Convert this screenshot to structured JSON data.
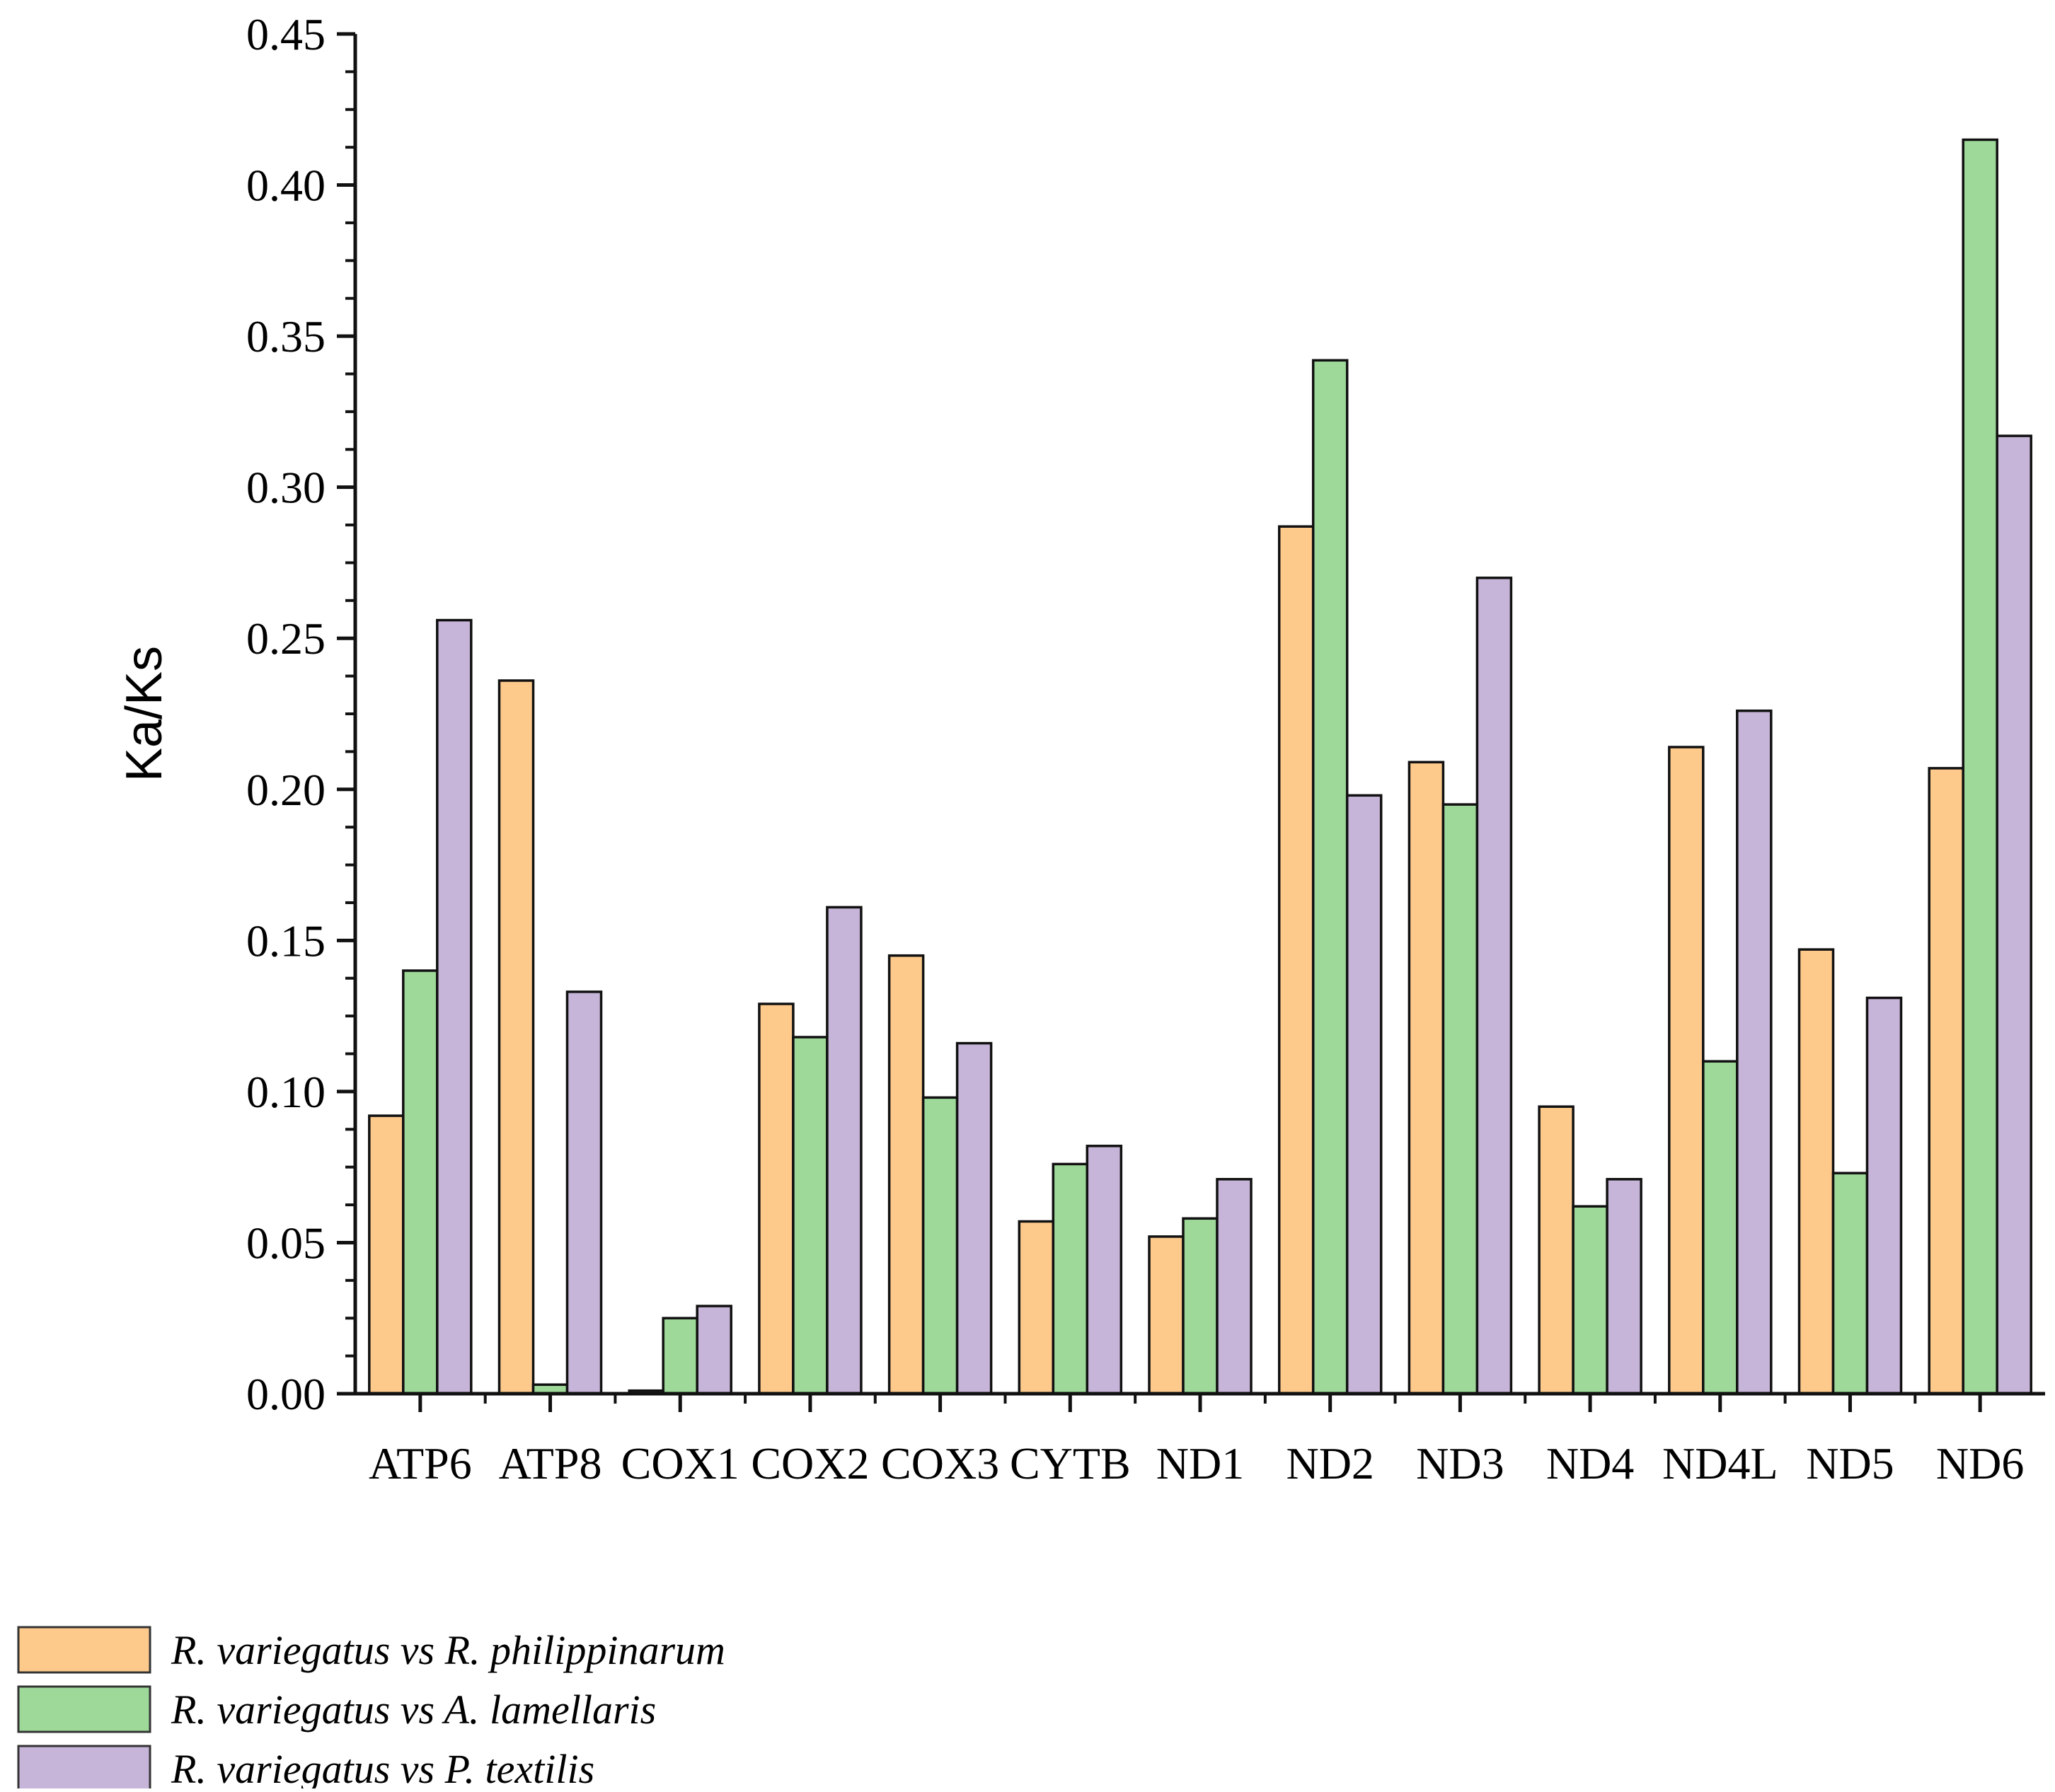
{
  "chart_data": {
    "type": "bar",
    "title": "",
    "xlabel": "",
    "ylabel": "Ka/Ks",
    "ylim": [
      0,
      0.45
    ],
    "yticks": [
      "0.00",
      "0.05",
      "0.10",
      "0.15",
      "0.20",
      "0.25",
      "0.30",
      "0.35",
      "0.40",
      "0.45"
    ],
    "ytick_values": [
      0,
      0.05,
      0.1,
      0.15,
      0.2,
      0.25,
      0.3,
      0.35,
      0.4,
      0.45
    ],
    "grid": false,
    "legend_position": "bottom-left",
    "categories": [
      "ATP6",
      "ATP8",
      "COX1",
      "COX2",
      "COX3",
      "CYTB",
      "ND1",
      "ND2",
      "ND3",
      "ND4",
      "ND4L",
      "ND5",
      "ND6"
    ],
    "series": [
      {
        "name": "R. variegatus vs R. philippinarum",
        "color": "#FDCA8C",
        "values": [
          0.092,
          0.236,
          0.001,
          0.129,
          0.145,
          0.057,
          0.052,
          0.287,
          0.209,
          0.095,
          0.214,
          0.147,
          0.207
        ]
      },
      {
        "name": "R. variegatus vs A. lamellaris",
        "color": "#9ED99A",
        "values": [
          0.14,
          0.003,
          0.025,
          0.118,
          0.098,
          0.076,
          0.058,
          0.342,
          0.195,
          0.062,
          0.11,
          0.073,
          0.415
        ]
      },
      {
        "name": "R. variegatus vs P. textilis",
        "color": "#C7B5D9",
        "values": [
          0.256,
          0.133,
          0.029,
          0.161,
          0.116,
          0.082,
          0.071,
          0.198,
          0.27,
          0.071,
          0.226,
          0.131,
          0.317
        ]
      }
    ]
  }
}
